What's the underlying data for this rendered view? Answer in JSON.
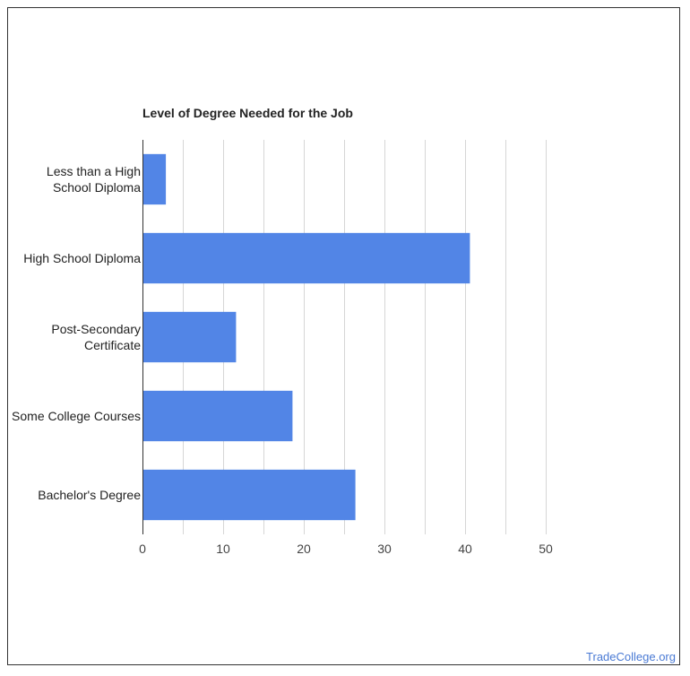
{
  "chart_data": {
    "type": "bar",
    "orientation": "horizontal",
    "title": "Level of Degree Needed for the Job",
    "categories": [
      [
        "Less than a High",
        "School Diploma"
      ],
      [
        "High School Diploma"
      ],
      [
        "Post-Secondary",
        "Certificate"
      ],
      [
        "Some College Courses"
      ],
      [
        "Bachelor's Degree"
      ]
    ],
    "values": [
      2.9,
      40.6,
      11.6,
      18.6,
      26.4
    ],
    "xlim": [
      0,
      50
    ],
    "xticks": [
      0,
      10,
      20,
      30,
      40,
      50
    ],
    "grid": "vertical",
    "bar_color": "#5285e6",
    "xlabel": "",
    "ylabel": ""
  },
  "watermark": "TradeCollege.org"
}
